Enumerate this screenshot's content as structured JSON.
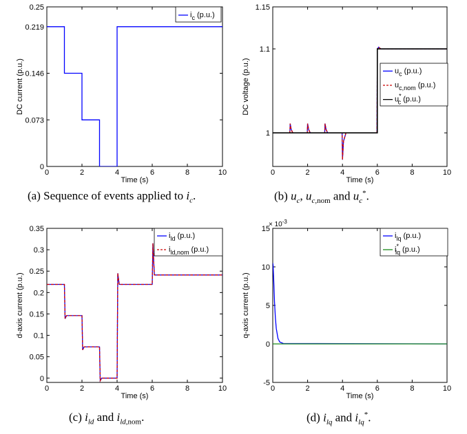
{
  "captions": {
    "a": {
      "prefix": "(a)  Sequence of events applied to",
      "math": "i",
      "sub": "c",
      "suffix": "."
    },
    "b": {
      "prefix": "(b)",
      "text": "u_c, u_c,nom and u*_c."
    },
    "c": {
      "prefix": "(c)",
      "text": "i_ld and i_ld,nom."
    },
    "d": {
      "prefix": "(d)",
      "text": "i_lq and i*_lq."
    }
  },
  "colors": {
    "blue": "#0000ff",
    "red": "#cc0000",
    "black": "#000000",
    "green": "#1a8a1a",
    "axis": "#000000",
    "grid": "#c8c8c8"
  },
  "chart_data": [
    {
      "id": "a",
      "type": "line",
      "xlabel": "Time (s)",
      "ylabel": "DC current (p.u.)",
      "xlim": [
        0,
        10
      ],
      "ylim": [
        0,
        0.25
      ],
      "xticks": [
        0,
        2,
        4,
        6,
        8,
        10
      ],
      "yticks": [
        0,
        0.073,
        0.146,
        0.219,
        0.25
      ],
      "ytick_labels": [
        "0",
        "0.073",
        "0.146",
        "0.219",
        "0.25"
      ],
      "grid": false,
      "legend_position": "top-right",
      "series": [
        {
          "name": "i_c (p.u.)",
          "color": "blue",
          "dash": "solid",
          "x": [
            0,
            1,
            1,
            2,
            2,
            3,
            3,
            4,
            4,
            10
          ],
          "y": [
            0.219,
            0.219,
            0.146,
            0.146,
            0.073,
            0.073,
            0,
            0,
            0.219,
            0.219
          ]
        }
      ]
    },
    {
      "id": "b",
      "type": "line",
      "xlabel": "Time (s)",
      "ylabel": "DC voltage (p.u.)",
      "xlim": [
        0,
        10
      ],
      "ylim": [
        0.96,
        1.15
      ],
      "xticks": [
        0,
        2,
        4,
        6,
        8,
        10
      ],
      "yticks": [
        1,
        1.1,
        1.15
      ],
      "ytick_labels": [
        "1",
        "1.1",
        "1.15"
      ],
      "grid": false,
      "legend_position": "middle-right",
      "series": [
        {
          "name": "u_c (p.u.)",
          "color": "blue",
          "dash": "solid",
          "x": [
            0,
            0.98,
            1.0,
            1.06,
            1.15,
            1.98,
            2.0,
            2.06,
            2.15,
            2.98,
            3.0,
            3.06,
            3.15,
            3.98,
            4.0,
            4.06,
            4.2,
            5.98,
            6.0,
            6.08,
            6.2,
            10
          ],
          "y": [
            1,
            1,
            1.011,
            1.004,
            1,
            1,
            1.011,
            1.004,
            1,
            1,
            1.011,
            1.004,
            1,
            1,
            0.968,
            0.99,
            1,
            1,
            1.1,
            1.102,
            1.1,
            1.1
          ]
        },
        {
          "name": "u_c,nom (p.u.)",
          "color": "red",
          "dash": "dash",
          "x": [
            0,
            0.98,
            1.0,
            1.06,
            1.15,
            1.98,
            2.0,
            2.06,
            2.15,
            2.98,
            3.0,
            3.06,
            3.15,
            3.98,
            4.0,
            4.06,
            4.2,
            5.98,
            6.0,
            6.08,
            6.2,
            10
          ],
          "y": [
            1,
            1,
            1.011,
            1.004,
            1,
            1,
            1.011,
            1.004,
            1,
            1,
            1.011,
            1.004,
            1,
            1,
            0.968,
            0.99,
            1,
            1,
            1.1,
            1.102,
            1.1,
            1.1
          ]
        },
        {
          "name": "u*_c (p.u.)",
          "color": "black",
          "dash": "solid",
          "x": [
            0,
            6,
            6,
            10
          ],
          "y": [
            1,
            1,
            1.1,
            1.1
          ]
        }
      ]
    },
    {
      "id": "c",
      "type": "line",
      "xlabel": "Time (s)",
      "ylabel": "d-axis current (p.u.)",
      "xlim": [
        0,
        10
      ],
      "ylim": [
        -0.01,
        0.35
      ],
      "xticks": [
        0,
        2,
        4,
        6,
        8,
        10
      ],
      "yticks": [
        0,
        0.05,
        0.1,
        0.15,
        0.2,
        0.25,
        0.3,
        0.35
      ],
      "ytick_labels": [
        "0",
        "0.05",
        "0.1",
        "0.15",
        "0.2",
        "0.25",
        "0.3",
        "0.35"
      ],
      "grid": false,
      "legend_position": "top-right",
      "series": [
        {
          "name": "i_ld (p.u.)",
          "color": "blue",
          "dash": "solid",
          "x": [
            0,
            1,
            1.04,
            1.12,
            2,
            2.04,
            2.12,
            3,
            3.04,
            3.12,
            4,
            4.04,
            4.12,
            6,
            6.04,
            6.12,
            10
          ],
          "y": [
            0.219,
            0.219,
            0.139,
            0.146,
            0.146,
            0.066,
            0.073,
            0.073,
            -0.006,
            0,
            0,
            0.245,
            0.219,
            0.219,
            0.315,
            0.241,
            0.241
          ]
        },
        {
          "name": "i_ld,nom (p.u.)",
          "color": "red",
          "dash": "dash",
          "x": [
            0,
            1,
            1.04,
            1.12,
            2,
            2.04,
            2.12,
            3,
            3.04,
            3.12,
            4,
            4.04,
            4.12,
            6,
            6.04,
            6.12,
            10
          ],
          "y": [
            0.219,
            0.219,
            0.139,
            0.146,
            0.146,
            0.066,
            0.073,
            0.073,
            -0.006,
            0,
            0,
            0.245,
            0.219,
            0.219,
            0.315,
            0.241,
            0.241
          ]
        }
      ]
    },
    {
      "id": "d",
      "type": "line",
      "xlabel": "Time (s)",
      "ylabel": "q-axis current (p.u.)",
      "exponent_label": "× 10",
      "exponent_power": "-3",
      "xlim": [
        0,
        10
      ],
      "ylim": [
        -5,
        15
      ],
      "xticks": [
        0,
        2,
        4,
        6,
        8,
        10
      ],
      "yticks": [
        -5,
        0,
        5,
        10,
        15
      ],
      "ytick_labels": [
        "-5",
        "0",
        "5",
        "10",
        "15"
      ],
      "grid": false,
      "legend_position": "top-right",
      "series": [
        {
          "name": "i_lq (p.u.)",
          "color": "blue",
          "dash": "solid",
          "x": [
            0,
            0.02,
            0.05,
            0.1,
            0.15,
            0.2,
            0.3,
            0.4,
            0.6,
            10
          ],
          "y": [
            10.5,
            10.2,
            8.5,
            5.5,
            3.4,
            2.0,
            0.7,
            0.25,
            0.05,
            0
          ]
        },
        {
          "name": "i*_lq (p.u.)",
          "color": "green",
          "dash": "solid",
          "x": [
            0,
            10
          ],
          "y": [
            0,
            0
          ]
        }
      ]
    }
  ]
}
